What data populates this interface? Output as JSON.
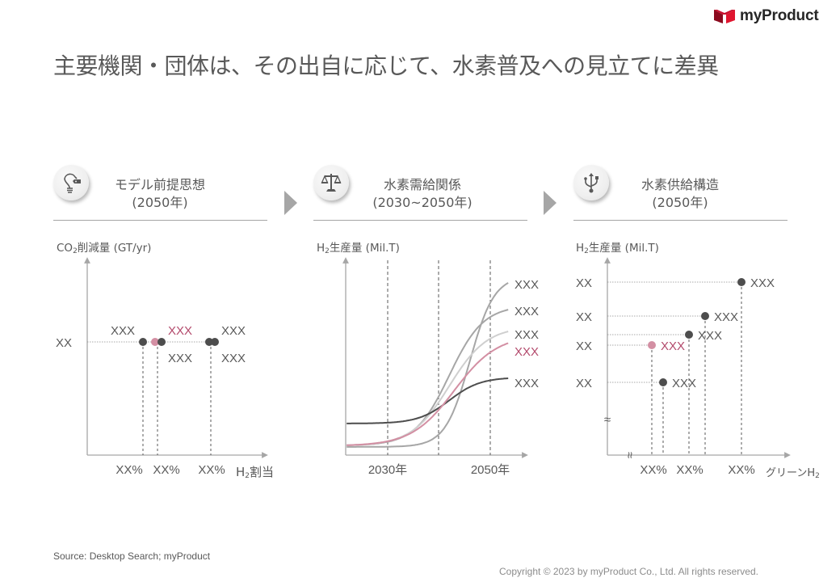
{
  "brand": {
    "name": "myProduct",
    "mark_color": "#c8102e"
  },
  "title": "主要機関・団体は、その出自に応じて、水素普及への見立てに差異",
  "colors": {
    "text": "#595959",
    "pink": "#d38fa3",
    "pink_text": "#b34a6c",
    "dark": "#4d4d4d",
    "axis": "#a6a6a6"
  },
  "sections": [
    {
      "icon": "lightbulb-icon",
      "line1": "モデル前提思想",
      "line2": "(2050年)"
    },
    {
      "icon": "balance-scale-icon",
      "line1": "水素需給関係",
      "line2": "(2030~2050年)"
    },
    {
      "icon": "usb-branch-icon",
      "line1": "水素供給構造",
      "line2": "(2050年)"
    }
  ],
  "chart_data": [
    {
      "type": "scatter",
      "title": "モデル前提思想 (2050年)",
      "ylabel_main": "CO",
      "ylabel_sub": "2",
      "ylabel_rest": "削減量 (GT/yr)",
      "xlabel_main": "H",
      "xlabel_sub": "2",
      "xlabel_rest": "割当",
      "y_tick": "XX",
      "x_ticks": [
        "XX%",
        "XX%",
        "XX%"
      ],
      "points": [
        {
          "x": 1,
          "label": "XXX",
          "label_pos": "above-left",
          "highlight": false
        },
        {
          "x": 2,
          "label": "XXX",
          "label_pos": "above",
          "highlight": true
        },
        {
          "x": 2.15,
          "label": "XXX",
          "label_pos": "below",
          "highlight": false
        },
        {
          "x": 3,
          "label": "XXX",
          "label_pos": "above",
          "highlight": false
        },
        {
          "x": 3.12,
          "label": "XXX",
          "label_pos": "below",
          "highlight": false
        }
      ]
    },
    {
      "type": "line",
      "title": "水素需給関係 (2030~2050年)",
      "ylabel_main": "H",
      "ylabel_sub": "2",
      "ylabel_rest": "生産量 (Mil.T)",
      "x_ticks": [
        "2030年",
        "2050年"
      ],
      "x_range": [
        2025,
        2057
      ],
      "gridlines_x": [
        2030,
        2040,
        2050
      ],
      "series": [
        {
          "name": "XXX",
          "color": "#a6a6a6",
          "end": 100,
          "start": 2,
          "mid": 2046,
          "steep": 0.42
        },
        {
          "name": "XXX",
          "color": "#a6a6a6",
          "end": 84,
          "start": 3,
          "mid": 2042,
          "steep": 0.3
        },
        {
          "name": "XXX",
          "color": "#cfcfcf",
          "end": 71,
          "start": 3,
          "mid": 2042,
          "steep": 0.27
        },
        {
          "name": "XXX",
          "color": "#d38fa3",
          "end": 64,
          "start": 3,
          "mid": 2043,
          "steep": 0.24,
          "highlight": true
        },
        {
          "name": "XXX",
          "color": "#4d4d4d",
          "end": 43,
          "start": 16,
          "mid": 2042,
          "steep": 0.33
        }
      ]
    },
    {
      "type": "scatter",
      "title": "水素供給構造 (2050年)",
      "ylabel_main": "H",
      "ylabel_sub": "2",
      "ylabel_rest": "生産量 (Mil.T)",
      "xlabel_main": "グリーンH",
      "xlabel_sub": "2",
      "y_ticks": [
        "XX",
        "XX",
        "XX",
        "XX"
      ],
      "x_ticks": [
        "XX%",
        "XX%",
        "XX%"
      ],
      "points": [
        {
          "x": 55,
          "y": 100,
          "label": "XXX",
          "highlight": false
        },
        {
          "x": 40,
          "y": 82,
          "label": "XXX",
          "highlight": false
        },
        {
          "x": 36,
          "y": 72,
          "label": "XXX",
          "highlight": false
        },
        {
          "x": 24,
          "y": 66,
          "label": "XXX",
          "highlight": true
        },
        {
          "x": 27,
          "y": 47,
          "label": "XXX",
          "highlight": false
        }
      ]
    }
  ],
  "footer": {
    "source": "Source: Desktop Search; myProduct",
    "copyright": "Copyright © 2023 by myProduct Co., Ltd.  All rights reserved."
  }
}
